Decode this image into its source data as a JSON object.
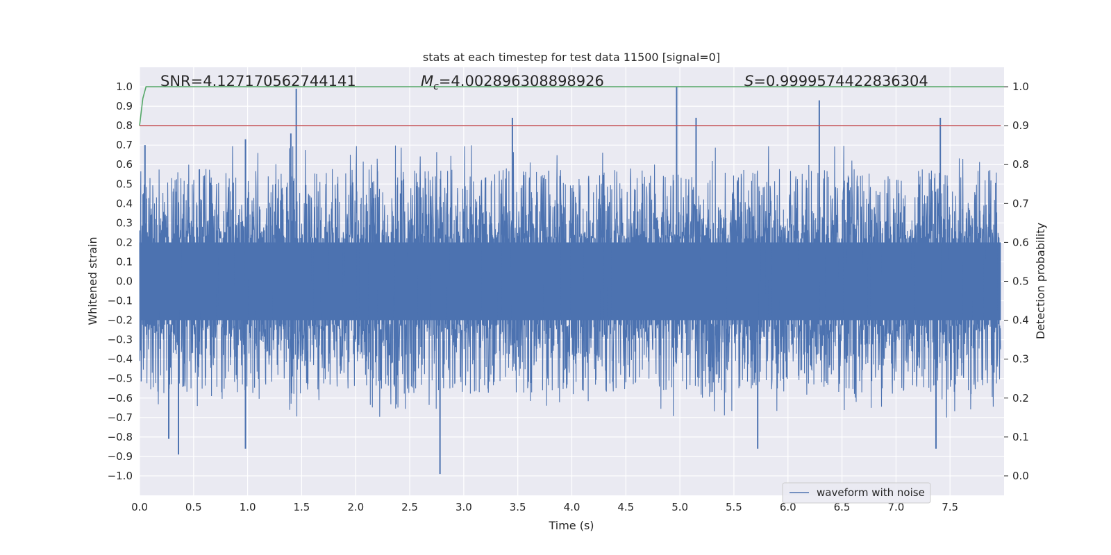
{
  "chart_data": {
    "type": "line",
    "title": "stats at each timestep for test data 11500 [signal=0]",
    "xlabel": "Time (s)",
    "ylabel": "Whitened strain",
    "ylabel_right": "Detection probability",
    "xlim": [
      0.0,
      8.0
    ],
    "ylim": [
      -1.1,
      1.1
    ],
    "ylim_right": [
      -0.05,
      1.05
    ],
    "x_ticks": [
      "0.0",
      "0.5",
      "1.0",
      "1.5",
      "2.0",
      "2.5",
      "3.0",
      "3.5",
      "4.0",
      "4.5",
      "5.0",
      "5.5",
      "6.0",
      "6.5",
      "7.0",
      "7.5"
    ],
    "y_ticks": [
      "1.0",
      "0.9",
      "0.8",
      "0.7",
      "0.6",
      "0.5",
      "0.4",
      "0.3",
      "0.2",
      "0.1",
      "0.0",
      "−0.1",
      "−0.2",
      "−0.3",
      "−0.4",
      "−0.5",
      "−0.6",
      "−0.7",
      "−0.8",
      "−0.9",
      "−1.0"
    ],
    "y_ticks_right": [
      "1.0",
      "0.9",
      "0.8",
      "0.7",
      "0.6",
      "0.5",
      "0.4",
      "0.3",
      "0.2",
      "0.1",
      "0.0"
    ],
    "grid": true,
    "legend_position": "lower-right",
    "annotations": {
      "snr": "SNR=4.127170562744141",
      "mc_symbol": "M",
      "mc_sub": "c",
      "mc_value": "=4.002896308898926",
      "s_symbol": "S",
      "s_value": "=0.9999574422836304"
    },
    "series": [
      {
        "name": "waveform with noise",
        "axis": "left",
        "color": "#4c72b0",
        "style": "dense noise",
        "envelope_typical": [
          -0.4,
          0.4
        ],
        "peaks": [
          {
            "x": 1.45,
            "y": 0.99
          },
          {
            "x": 4.97,
            "y": 1.0
          },
          {
            "x": 3.45,
            "y": 0.84
          },
          {
            "x": 5.15,
            "y": 0.84
          },
          {
            "x": 6.29,
            "y": 0.93
          },
          {
            "x": 7.41,
            "y": 0.84
          },
          {
            "x": 1.4,
            "y": 0.76
          },
          {
            "x": 0.98,
            "y": 0.73
          },
          {
            "x": 0.05,
            "y": 0.7
          },
          {
            "x": 2.78,
            "y": -0.99
          },
          {
            "x": 0.36,
            "y": -0.89
          },
          {
            "x": 0.98,
            "y": -0.86
          },
          {
            "x": 5.72,
            "y": -0.86
          },
          {
            "x": 7.37,
            "y": -0.86
          },
          {
            "x": 0.27,
            "y": -0.81
          }
        ]
      },
      {
        "name": "",
        "axis": "right",
        "color": "#55a868",
        "style": "line",
        "x": [
          0.0,
          0.03,
          0.06,
          0.1,
          8.0
        ],
        "y": [
          0.9,
          0.97,
          1.0,
          1.0,
          1.0
        ]
      },
      {
        "name": "",
        "axis": "right",
        "color": "#c44e52",
        "style": "hline",
        "y": 0.9
      }
    ]
  },
  "colors": {
    "plot_bg": "#eaeaf2",
    "grid": "#ffffff",
    "waveform": "#4c72b0",
    "probability": "#55a868",
    "threshold": "#c44e52"
  }
}
